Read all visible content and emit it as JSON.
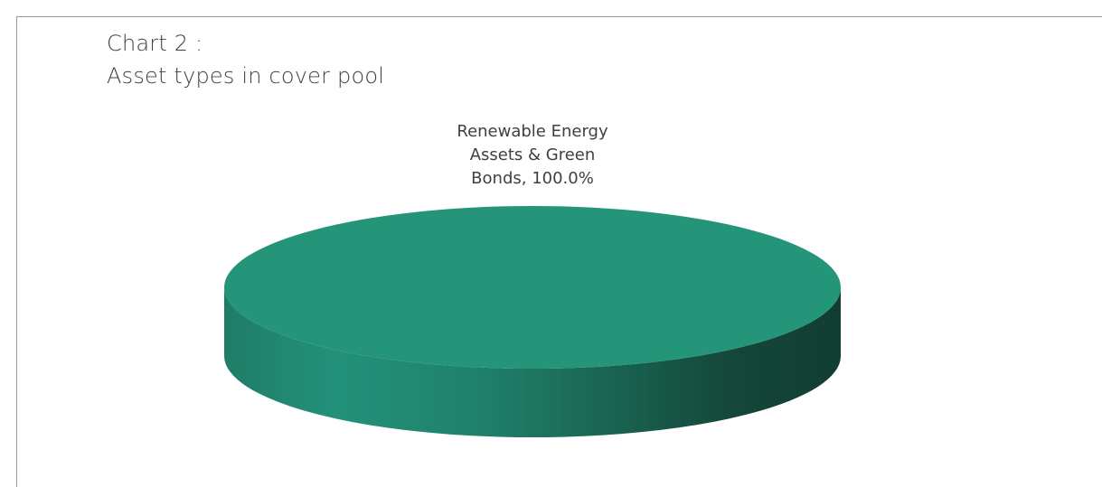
{
  "chart_data": {
    "type": "pie",
    "title_lines": [
      "Chart 2 :",
      "Asset types in cover pool"
    ],
    "slices": [
      {
        "label_lines": [
          "Renewable Energy",
          "Assets & Green",
          "Bonds, 100.0%"
        ],
        "value": 100.0,
        "color": "#25957a",
        "side_color_dark": "#123d32"
      }
    ],
    "legend": "none",
    "style": "3d"
  }
}
